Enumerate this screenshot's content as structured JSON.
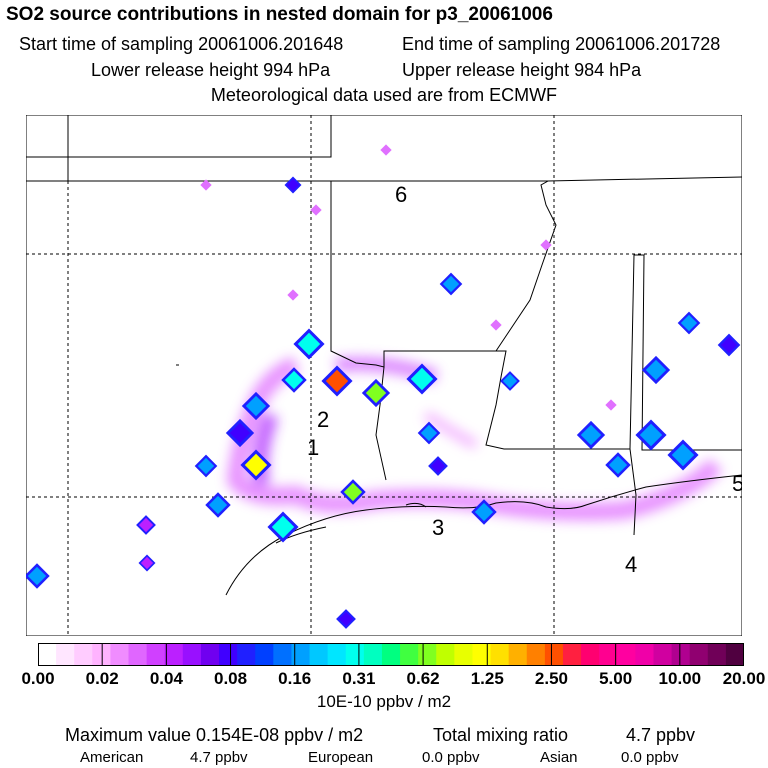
{
  "title": "SO2 source contributions in nested domain for p3_20061006",
  "sampling": {
    "start_label": "Start time of sampling 20061006.201648",
    "end_label": "End time of sampling 20061006.201728"
  },
  "release": {
    "lower_label": "Lower release height  994 hPa",
    "upper_label": "Upper release height  984 hPa"
  },
  "met_label": "Meteorological data used are from ECMWF",
  "region_labels": [
    "1",
    "2",
    "3",
    "4",
    "5",
    "6"
  ],
  "colorbar": {
    "colors": [
      "#ffffff",
      "#ffe6ff",
      "#ffccff",
      "#ffb3ff",
      "#f08cff",
      "#e066ff",
      "#d040ff",
      "#bb20ff",
      "#9910ff",
      "#7000f0",
      "#4000ff",
      "#2020ff",
      "#0040ff",
      "#0070ff",
      "#00a0ff",
      "#00c8ff",
      "#00e6ff",
      "#00ffee",
      "#00ffc0",
      "#00ff80",
      "#40ff40",
      "#80ff20",
      "#c0ff00",
      "#e8ff00",
      "#ffff00",
      "#ffe000",
      "#ffb000",
      "#ff8000",
      "#ff5000",
      "#ff2040",
      "#ff0070",
      "#ff0090",
      "#ff00a0",
      "#f000a8",
      "#d000a0",
      "#b00090",
      "#900070",
      "#700058",
      "#500040"
    ],
    "tick_labels": [
      "0.00",
      "0.02",
      "0.04",
      "0.08",
      "0.16",
      "0.31",
      "0.62",
      "1.25",
      "2.50",
      "5.00",
      "10.00",
      "20.00"
    ]
  },
  "units_label": "10E-10 ppbv / m2",
  "max_value_label": "Maximum value  0.154E-08 ppbv / m2",
  "total_mixing": {
    "label": "Total mixing ratio",
    "value": "4.7 ppbv"
  },
  "source_breakdown": [
    {
      "name": "American",
      "value": "4.7 ppbv"
    },
    {
      "name": "European",
      "value": "0.0 ppbv"
    },
    {
      "name": "Asian",
      "value": "0.0 ppbv"
    }
  ],
  "chart_data": {
    "type": "heatmap",
    "title": "SO2 source contributions in nested domain for p3_20061006",
    "colorbar_label": "10E-10 ppbv / m2",
    "colorbar_ticks": [
      0.0,
      0.02,
      0.04,
      0.08,
      0.16,
      0.31,
      0.62,
      1.25,
      2.5,
      5.0,
      10.0,
      20.0
    ],
    "max_value": "0.154E-08 ppbv / m2",
    "total_mixing_ratio_ppbv": 4.7,
    "hotspot_levels": [
      0.31,
      2.5,
      0.16,
      0.08,
      1.25,
      0.31,
      0.62,
      0.31,
      0.16,
      0.16,
      0.16,
      0.31,
      0.08,
      0.16,
      0.08,
      0.62,
      0.04,
      0.04,
      0.16,
      0.08,
      0.16,
      0.16,
      0.16,
      0.08,
      0.16,
      0.16,
      0.16,
      0.16,
      0.16
    ]
  }
}
